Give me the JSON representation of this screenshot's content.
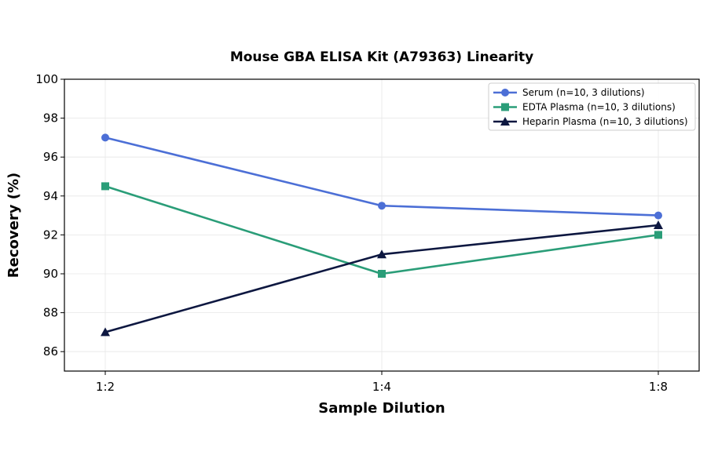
{
  "chart_data": {
    "type": "line",
    "title": "Mouse GBA ELISA Kit (A79363) Linearity",
    "xlabel": "Sample Dilution",
    "ylabel": "Recovery (%)",
    "categories": [
      "1:2",
      "1:4",
      "1:8"
    ],
    "ylim": [
      85,
      100
    ],
    "yticks": [
      86,
      88,
      90,
      92,
      94,
      96,
      98,
      100
    ],
    "grid": true,
    "legend_position": "top-right",
    "series": [
      {
        "name": "Serum (n=10, 3 dilutions)",
        "values": [
          97,
          93.5,
          93
        ],
        "color": "#4c6fd6",
        "marker": "circle"
      },
      {
        "name": "EDTA Plasma (n=10, 3 dilutions)",
        "values": [
          94.5,
          90,
          92
        ],
        "color": "#2a9d78",
        "marker": "square"
      },
      {
        "name": "Heparin Plasma (n=10, 3 dilutions)",
        "values": [
          87,
          91,
          92.5
        ],
        "color": "#0d1740",
        "marker": "triangle"
      }
    ]
  }
}
